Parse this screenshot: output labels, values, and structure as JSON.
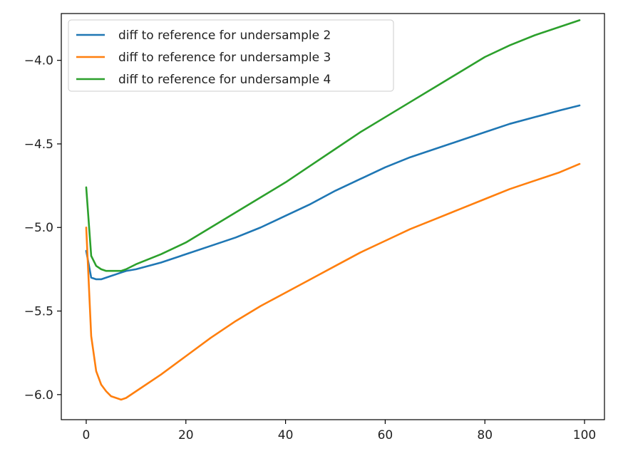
{
  "chart_data": {
    "type": "line",
    "title": "",
    "xlabel": "",
    "ylabel": "",
    "xlim": [
      -5,
      104
    ],
    "ylim": [
      -6.15,
      -3.72
    ],
    "xticks": [
      0,
      20,
      40,
      60,
      80,
      100
    ],
    "yticks": [
      -4.0,
      -4.5,
      -5.0,
      -5.5,
      -6.0
    ],
    "xtick_labels": [
      "0",
      "20",
      "40",
      "60",
      "80",
      "100"
    ],
    "ytick_labels": [
      "−4.0",
      "−4.5",
      "−5.0",
      "−5.5",
      "−6.0"
    ],
    "grid": false,
    "legend_position": "top-left",
    "x": [
      0,
      1,
      2,
      3,
      4,
      5,
      6,
      7,
      8,
      10,
      15,
      20,
      25,
      30,
      35,
      40,
      45,
      50,
      55,
      60,
      65,
      70,
      75,
      80,
      85,
      90,
      95,
      99
    ],
    "series": [
      {
        "name": "diff to reference for undersample 2",
        "color": "#1f77b4",
        "values": [
          -5.14,
          -5.3,
          -5.31,
          -5.31,
          -5.3,
          -5.29,
          -5.28,
          -5.27,
          -5.26,
          -5.25,
          -5.21,
          -5.16,
          -5.11,
          -5.06,
          -5.0,
          -4.93,
          -4.86,
          -4.78,
          -4.71,
          -4.64,
          -4.58,
          -4.53,
          -4.48,
          -4.43,
          -4.38,
          -4.34,
          -4.3,
          -4.27
        ]
      },
      {
        "name": "diff to reference for undersample 3",
        "color": "#ff7f0e",
        "values": [
          -5.0,
          -5.65,
          -5.86,
          -5.94,
          -5.98,
          -6.01,
          -6.02,
          -6.03,
          -6.02,
          -5.98,
          -5.88,
          -5.77,
          -5.66,
          -5.56,
          -5.47,
          -5.39,
          -5.31,
          -5.23,
          -5.15,
          -5.08,
          -5.01,
          -4.95,
          -4.89,
          -4.83,
          -4.77,
          -4.72,
          -4.67,
          -4.62
        ]
      },
      {
        "name": "diff to reference for undersample 4",
        "color": "#2ca02c",
        "values": [
          -4.76,
          -5.17,
          -5.23,
          -5.25,
          -5.26,
          -5.26,
          -5.26,
          -5.26,
          -5.25,
          -5.22,
          -5.16,
          -5.09,
          -5.0,
          -4.91,
          -4.82,
          -4.73,
          -4.63,
          -4.53,
          -4.43,
          -4.34,
          -4.25,
          -4.16,
          -4.07,
          -3.98,
          -3.91,
          -3.85,
          -3.8,
          -3.76
        ]
      }
    ]
  }
}
